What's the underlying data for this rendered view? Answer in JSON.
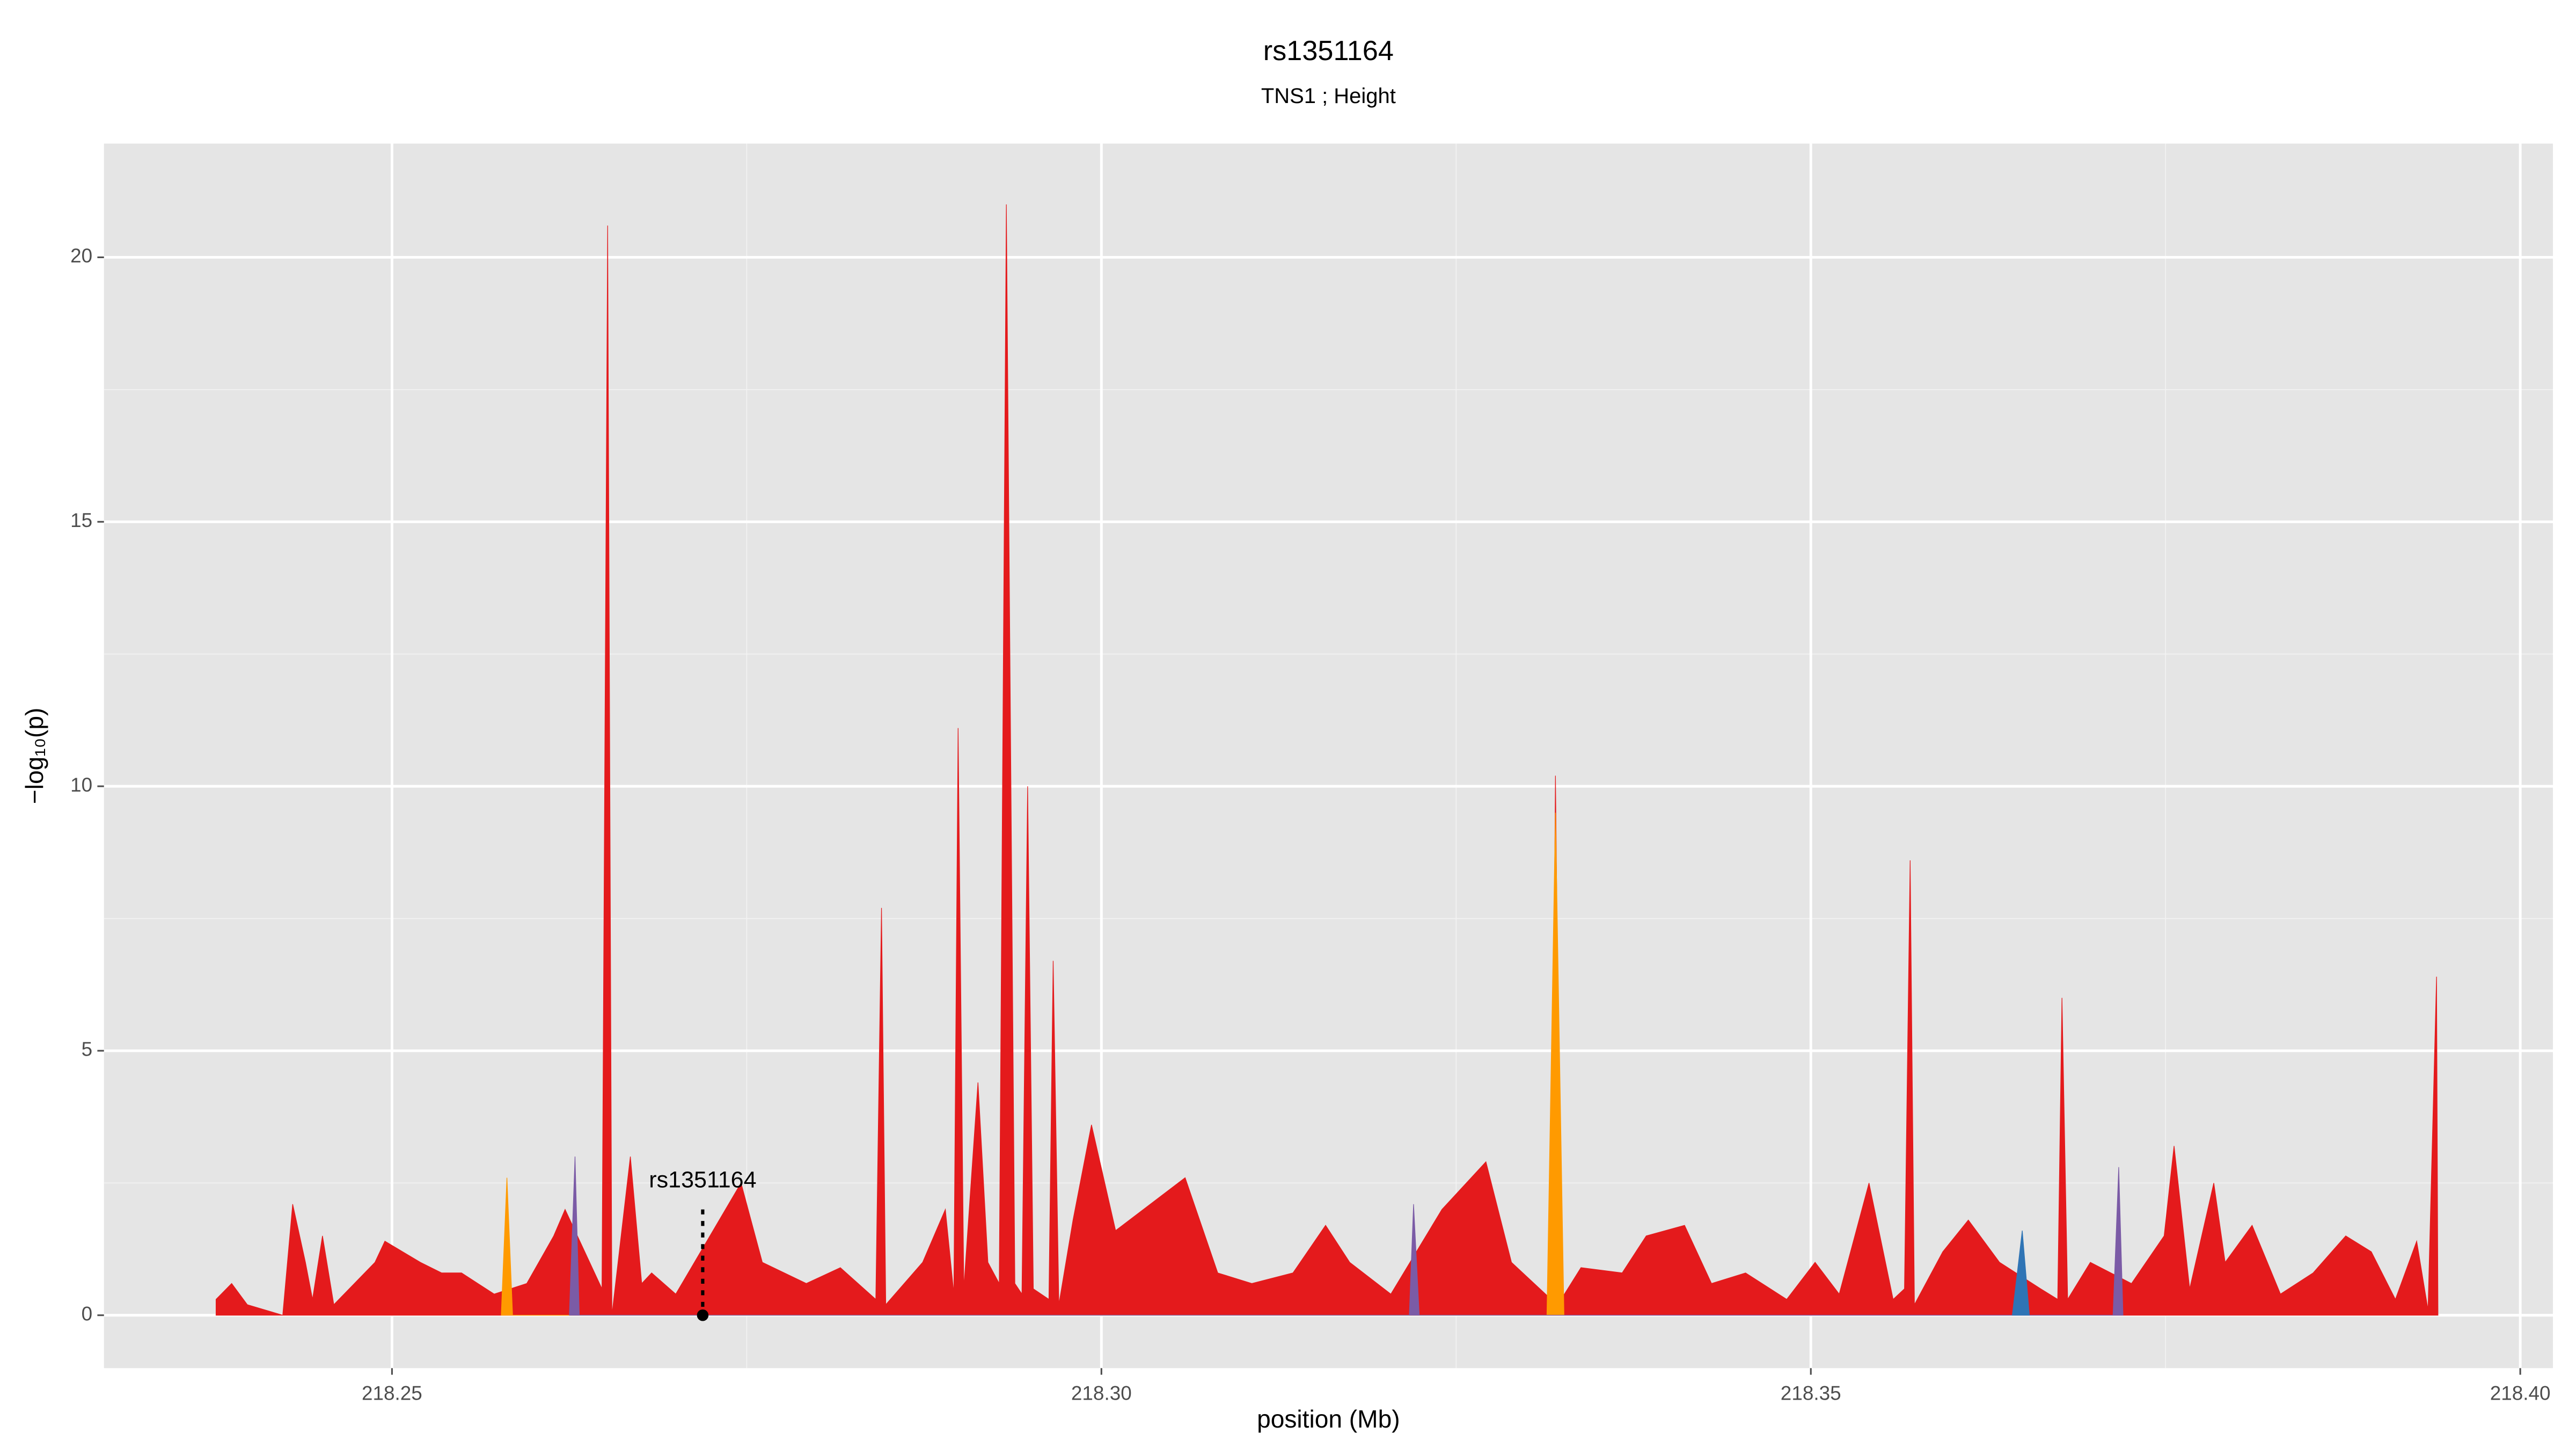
{
  "chart_data": {
    "type": "area",
    "title": "rs1351164",
    "subtitle": "TNS1 ; Height",
    "x_label": "position (Mb)",
    "y_label": "−log₁₀(p)",
    "xlim": [
      218.2297,
      218.4023
    ],
    "ylim": [
      -1.0,
      22.15
    ],
    "xticks": [
      218.25,
      {
        "value": 218.3,
        "label": "218.30"
      },
      218.35,
      {
        "value": 218.4,
        "label": "218.40"
      }
    ],
    "yticks": [
      0,
      5,
      10,
      15,
      20
    ],
    "grid": true,
    "series": [
      {
        "color": "#e41a1c",
        "x": [
          218.2376,
          218.2387,
          218.2398,
          218.2423,
          218.243,
          218.2439,
          218.2444,
          218.2451,
          218.2459,
          218.2488,
          218.2495,
          218.252,
          218.2535,
          218.2549,
          218.2572,
          218.2595,
          218.2614,
          218.2622,
          218.2648,
          218.2652,
          218.2655,
          218.2668,
          218.2676,
          218.2683,
          218.27,
          218.2746,
          218.2761,
          218.2792,
          218.2816,
          218.2841,
          218.2845,
          218.2848,
          218.2874,
          218.289,
          218.2896,
          218.2899,
          218.2903,
          218.2913,
          218.292,
          218.2928,
          218.2933,
          218.2939,
          218.2944,
          218.2948,
          218.2952,
          218.2963,
          218.2966,
          218.297,
          218.298,
          218.2993,
          218.301,
          218.3059,
          218.3082,
          218.3106,
          218.3135,
          218.3158,
          218.3175,
          218.3204,
          218.324,
          218.3271,
          218.3289,
          218.3317,
          218.332,
          218.3324,
          218.3338,
          218.3367,
          218.3384,
          218.3411,
          218.343,
          218.3454,
          218.3483,
          218.3503,
          218.352,
          218.3541,
          218.3558,
          218.3566,
          218.357,
          218.3573,
          218.3593,
          218.3611,
          218.3633,
          218.3662,
          218.3674,
          218.3677,
          218.3681,
          218.3697,
          218.3726,
          218.3749,
          218.3756,
          218.3767,
          218.3784,
          218.3792,
          218.3811,
          218.3831,
          218.3854,
          218.3877,
          218.3895,
          218.3912,
          218.3927,
          218.3935,
          218.3941,
          218.3942
        ],
        "values": [
          0.3,
          0.6,
          0.2,
          0,
          2.1,
          1.0,
          0.3,
          1.5,
          0.2,
          1.0,
          1.4,
          1.0,
          0.8,
          0.8,
          0.4,
          0.6,
          1.5,
          2.0,
          0.5,
          20.6,
          0,
          3.0,
          0.6,
          0.8,
          0.4,
          2.5,
          1.0,
          0.6,
          0.9,
          0.3,
          7.7,
          0.2,
          1.0,
          2.0,
          0.4,
          11.1,
          0.5,
          4.4,
          1.0,
          0.6,
          21.0,
          0.6,
          0.4,
          10.0,
          0.5,
          0.3,
          6.7,
          0.2,
          1.8,
          3.6,
          1.6,
          2.6,
          0.8,
          0.6,
          0.8,
          1.7,
          1.0,
          0.4,
          2.0,
          2.9,
          1.0,
          0.3,
          10.2,
          0.3,
          0.9,
          0.8,
          1.5,
          1.7,
          0.6,
          0.8,
          0.3,
          1.0,
          0.4,
          2.5,
          0.3,
          0.5,
          8.6,
          0.2,
          1.2,
          1.8,
          1.0,
          0.5,
          0.3,
          6.0,
          0.3,
          1.0,
          0.6,
          1.5,
          3.2,
          0.5,
          2.5,
          1.0,
          1.7,
          0.4,
          0.8,
          1.5,
          1.2,
          0.3,
          1.4,
          0.1,
          6.4,
          0
        ]
      },
      {
        "color": "#ff9a00",
        "x": [
          218.2577,
          218.2581,
          218.2585,
          218.3314,
          218.332,
          218.3326
        ],
        "values": [
          0,
          2.6,
          0,
          0,
          9.5,
          0
        ]
      },
      {
        "color": "#7b5ba6",
        "x": [
          218.2625,
          218.2629,
          218.2632,
          218.3217,
          218.322,
          218.3224,
          218.3713,
          218.3717,
          218.372
        ],
        "values": [
          0,
          3.0,
          0,
          0,
          2.1,
          0,
          0,
          2.8,
          0
        ]
      },
      {
        "color": "#2f74b5",
        "x": [
          218.3642,
          218.3649,
          218.3654
        ],
        "values": [
          0,
          1.6,
          0
        ]
      }
    ],
    "annotations": [
      {
        "text": "rs1351164",
        "x": 218.2719,
        "y": 2.0
      }
    ]
  }
}
